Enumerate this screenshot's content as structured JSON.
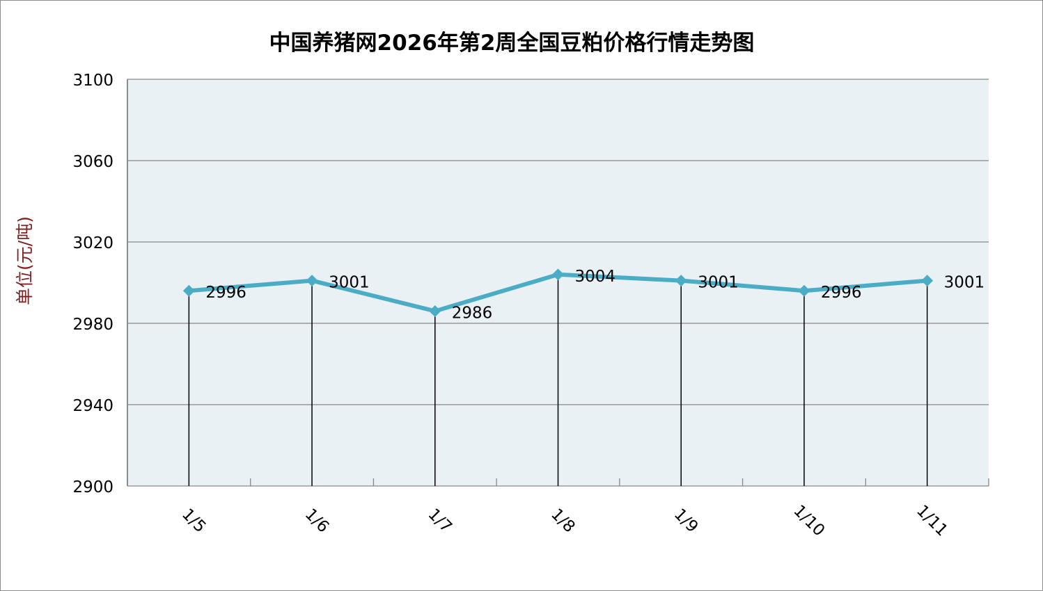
{
  "chart_data": {
    "type": "line",
    "title": "中国养猪网2026年第2周全国豆粕价格行情走势图",
    "xlabel": "",
    "ylabel": "单位(元/吨)",
    "categories": [
      "1/5",
      "1/6",
      "1/7",
      "1/8",
      "1/9",
      "1/10",
      "1/11"
    ],
    "values": [
      2996,
      3001,
      2986,
      3004,
      3001,
      2996,
      3001
    ],
    "data_labels": [
      "2996",
      "3001",
      "2986",
      "3004",
      "3001",
      "2996",
      "3001"
    ],
    "ylim": [
      2900,
      3100
    ],
    "yticks": [
      2900,
      2940,
      2980,
      3020,
      3060,
      3100
    ],
    "ytick_labels": [
      "2900",
      "2940",
      "2980",
      "3020",
      "3060",
      "3100"
    ],
    "grid": true,
    "drop_lines": true,
    "colors": {
      "line": "#4bacc6",
      "plot_bg": "#e9f1f5",
      "grid": "#878787",
      "ylabel": "#7f1f1f"
    }
  }
}
